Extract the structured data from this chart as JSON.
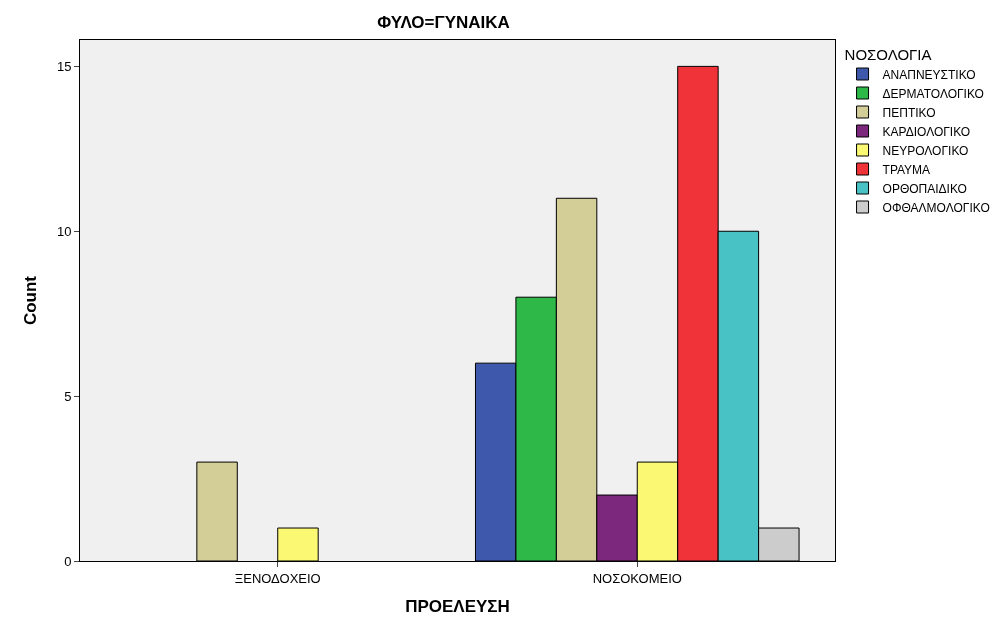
{
  "chart_data": {
    "type": "bar",
    "title": "ΦΥΛΟ=ΓΥΝΑΙΚΑ",
    "xlabel": "ΠΡΟΕΛΕΥΣΗ",
    "ylabel": "Count",
    "legend_title": "ΝΟΣΟΛΟΓΙΑ",
    "categories": [
      "ΞΕΝΟΔΟΧΕΙΟ",
      "ΝΟΣΟΚΟΜΕΙΟ"
    ],
    "series": [
      {
        "name": "ΑΝΑΠΝΕΥΣΤΙΚΟ",
        "color": "#3e58ac",
        "values": [
          null,
          6
        ]
      },
      {
        "name": "ΔΕΡΜΑΤΟΛΟΓΙΚΟ",
        "color": "#2eb848",
        "values": [
          null,
          8
        ]
      },
      {
        "name": "ΠΕΠΤΙΚΟ",
        "color": "#d3ce97",
        "values": [
          3,
          11
        ]
      },
      {
        "name": "ΚΑΡΔΙΟΛΟΓΙΚΟ",
        "color": "#7c287d",
        "values": [
          null,
          2
        ]
      },
      {
        "name": "ΝΕΥΡΟΛΟΓΙΚΟ",
        "color": "#fbf873",
        "values": [
          1,
          3
        ]
      },
      {
        "name": "ΤΡΑΥΜΑ",
        "color": "#ef3338",
        "values": [
          null,
          15
        ]
      },
      {
        "name": "ΟΡΘΟΠΑΙΔΙΚΟ",
        "color": "#48c2c5",
        "values": [
          null,
          10
        ]
      },
      {
        "name": "ΟΦΘΑΛΜΟΛΟΓΙΚΟ",
        "color": "#cccccc",
        "values": [
          null,
          1
        ]
      }
    ],
    "ylim": [
      0,
      15.8
    ],
    "yticks": [
      0,
      5,
      10,
      15
    ],
    "grid": false,
    "legend": "top right"
  }
}
